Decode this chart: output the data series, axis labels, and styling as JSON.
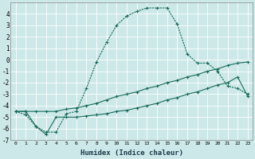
{
  "xlabel": "Humidex (Indice chaleur)",
  "bg_color": "#cce8e8",
  "grid_color": "#b8d8d8",
  "line_color": "#1a6b5a",
  "xlim": [
    -0.5,
    23.5
  ],
  "ylim": [
    -7,
    5
  ],
  "series1_x": [
    0,
    1,
    2,
    3,
    4,
    5,
    6,
    7,
    8,
    9,
    10,
    11,
    12,
    13,
    14,
    15,
    16,
    17,
    18,
    19,
    20,
    21,
    22,
    23
  ],
  "series1_y": [
    -4.5,
    -4.8,
    -5.8,
    -6.3,
    -6.3,
    -4.7,
    -4.5,
    -2.5,
    -0.2,
    1.5,
    3.0,
    3.8,
    4.2,
    4.5,
    4.5,
    4.5,
    3.1,
    0.5,
    -0.3,
    -0.3,
    -1.0,
    -2.3,
    -2.5,
    -3.0
  ],
  "series2_x": [
    0,
    1,
    2,
    3,
    4,
    5,
    6,
    7,
    8,
    9,
    10,
    11,
    12,
    13,
    14,
    15,
    16,
    17,
    18,
    19,
    20,
    21,
    22,
    23
  ],
  "series2_y": [
    -4.5,
    -4.5,
    -4.5,
    -4.5,
    -4.5,
    -4.3,
    -4.2,
    -4.0,
    -3.8,
    -3.5,
    -3.2,
    -3.0,
    -2.8,
    -2.5,
    -2.3,
    -2.0,
    -1.8,
    -1.5,
    -1.3,
    -1.0,
    -0.8,
    -0.5,
    -0.3,
    -0.2
  ],
  "series3_x": [
    0,
    1,
    2,
    3,
    4,
    5,
    6,
    7,
    8,
    9,
    10,
    11,
    12,
    13,
    14,
    15,
    16,
    17,
    18,
    19,
    20,
    21,
    22,
    23
  ],
  "series3_y": [
    -4.5,
    -4.5,
    -5.8,
    -6.5,
    -5.0,
    -5.0,
    -5.0,
    -4.9,
    -4.8,
    -4.7,
    -4.5,
    -4.4,
    -4.2,
    -4.0,
    -3.8,
    -3.5,
    -3.3,
    -3.0,
    -2.8,
    -2.5,
    -2.2,
    -2.0,
    -1.5,
    -3.2
  ]
}
